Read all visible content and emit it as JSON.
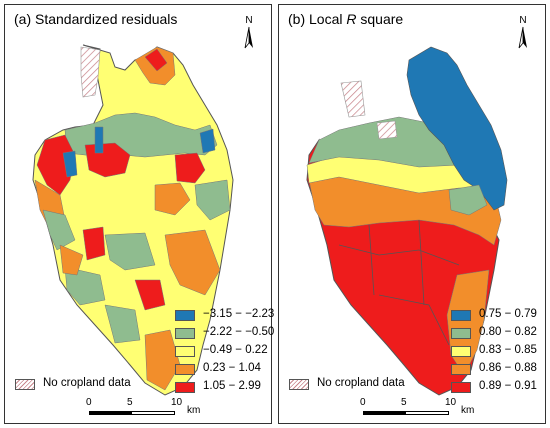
{
  "panel_a": {
    "title_prefix": "(a) Standardized residuals",
    "north_label": "N",
    "legend": [
      {
        "label": "−3.15 − −2.23",
        "color": "#1f78b4"
      },
      {
        "label": "−2.22 − −0.50",
        "color": "#8fbc8f"
      },
      {
        "label": "−0.49 − 0.22",
        "color": "#ffff73"
      },
      {
        "label": "0.23 − 1.04",
        "color": "#f28e2b"
      },
      {
        "label": "1.05 − 2.99",
        "color": "#ee1c1c"
      }
    ],
    "nodata_label": "No cropland data",
    "scale": {
      "ticks": [
        "0",
        "5",
        "10"
      ],
      "unit": "km"
    }
  },
  "panel_b": {
    "title_prefix": "(b) Local ",
    "title_italic": "R",
    "title_suffix": " square",
    "north_label": "N",
    "legend": [
      {
        "label": "0.75 − 0.79",
        "color": "#1f78b4"
      },
      {
        "label": "0.80 − 0.82",
        "color": "#8fbc8f"
      },
      {
        "label": "0.83 − 0.85",
        "color": "#ffff73"
      },
      {
        "label": "0.86 − 0.88",
        "color": "#f28e2b"
      },
      {
        "label": "0.89 − 0.91",
        "color": "#ee1c1c"
      }
    ],
    "nodata_label": "No cropland data",
    "scale": {
      "ticks": [
        "0",
        "5",
        "10"
      ],
      "unit": "km"
    }
  }
}
